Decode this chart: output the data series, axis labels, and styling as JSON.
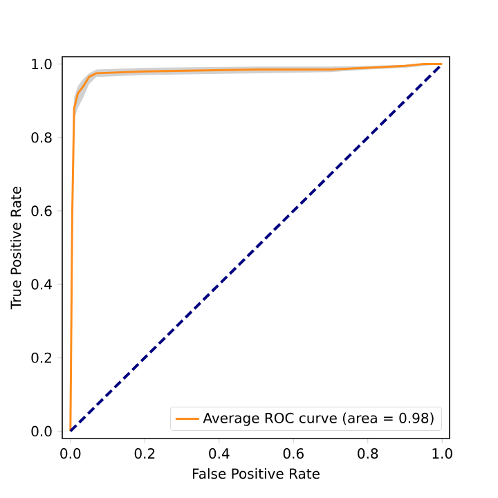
{
  "chart_data": {
    "type": "line",
    "xlabel": "False Positive Rate",
    "ylabel": "True Positive Rate",
    "x": [
      0,
      0.005,
      0.01,
      0.02,
      0.035,
      0.05,
      0.07,
      0.2,
      0.5,
      0.7,
      0.8,
      0.9,
      0.95,
      1
    ],
    "series": [
      {
        "name": "Average ROC curve (area = 0.98)",
        "color": "#ff8c1a",
        "values": [
          0,
          0.6,
          0.88,
          0.92,
          0.94,
          0.965,
          0.975,
          0.98,
          0.985,
          0.985,
          0.99,
          0.995,
          1,
          1
        ],
        "lower": [
          0,
          0.55,
          0.85,
          0.88,
          0.91,
          0.945,
          0.965,
          0.97,
          0.975,
          0.978,
          0.985,
          0.99,
          0.995,
          1
        ],
        "upper": [
          0,
          0.65,
          0.91,
          0.94,
          0.96,
          0.975,
          0.985,
          0.99,
          0.993,
          0.993,
          0.995,
          0.998,
          1,
          1
        ]
      },
      {
        "color": "#000080",
        "line_style": "dashed",
        "x": [
          0,
          1
        ],
        "values": [
          0,
          1
        ]
      }
    ],
    "xlim": [
      -0.022,
      1.02
    ],
    "ylim": [
      -0.02,
      1.02
    ],
    "xticks": [
      {
        "value": 0,
        "label": "0.0"
      },
      {
        "value": 0.2,
        "label": "0.2"
      },
      {
        "value": 0.4,
        "label": "0.4"
      },
      {
        "value": 0.6,
        "label": "0.6"
      },
      {
        "value": 0.8,
        "label": "0.8"
      },
      {
        "value": 1,
        "label": "1.0"
      }
    ],
    "yticks": [
      {
        "value": 0,
        "label": "0.0"
      },
      {
        "value": 0.2,
        "label": "0.2"
      },
      {
        "value": 0.4,
        "label": "0.4"
      },
      {
        "value": 0.6,
        "label": "0.6"
      },
      {
        "value": 0.8,
        "label": "0.8"
      },
      {
        "value": 1,
        "label": "1.0"
      }
    ],
    "legend": "bottom right"
  }
}
